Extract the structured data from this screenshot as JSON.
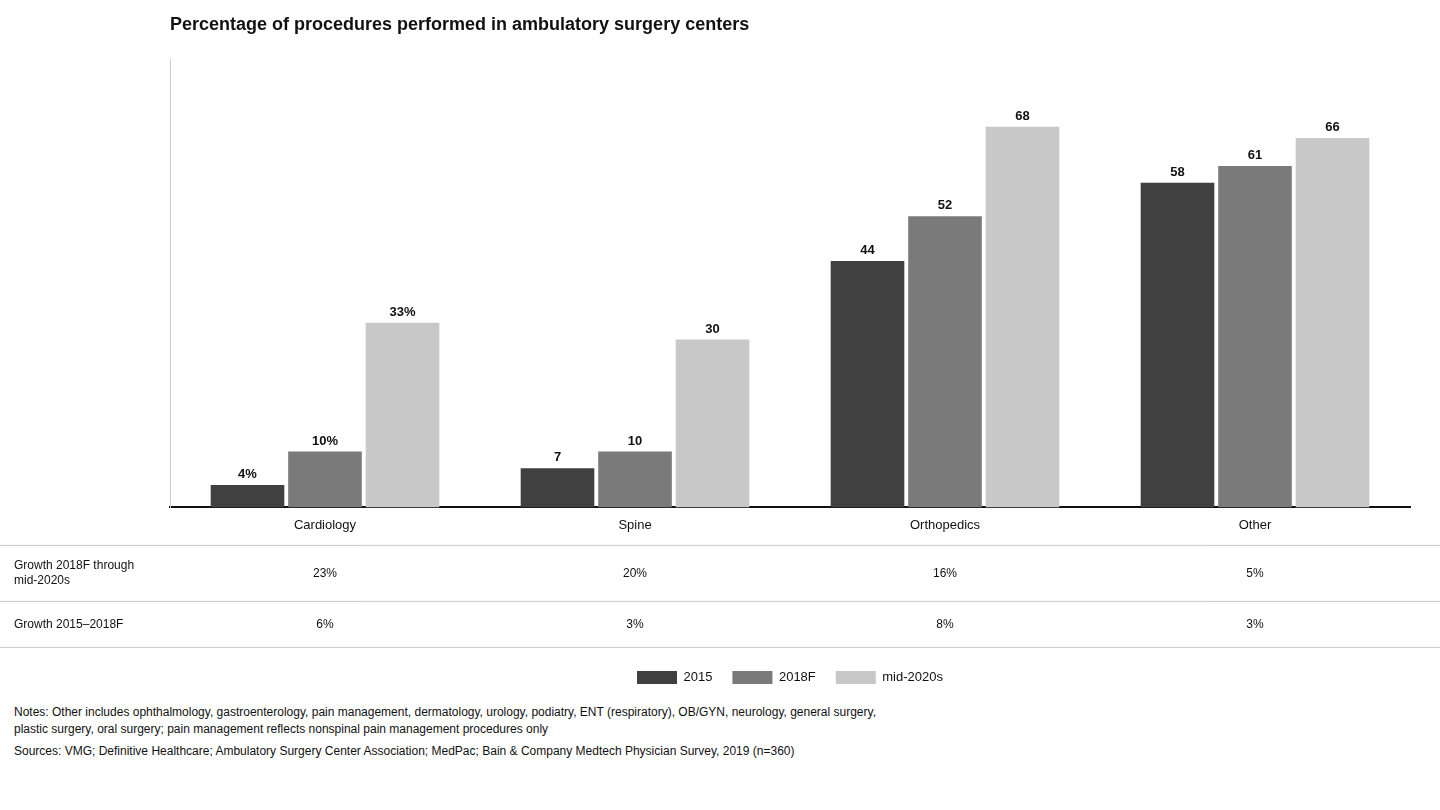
{
  "chart_data": {
    "type": "bar",
    "title": "Percentage of procedures performed in ambulatory surgery centers",
    "categories": [
      "Cardiology",
      "Spine",
      "Orthopedics",
      "Other"
    ],
    "series": [
      {
        "name": "2015",
        "color": "#404040",
        "values": [
          4,
          7,
          44,
          58
        ],
        "value_labels": [
          "4%",
          "7",
          "44",
          "58"
        ]
      },
      {
        "name": "2018F",
        "color": "#7a7a7a",
        "values": [
          10,
          10,
          52,
          61
        ],
        "value_labels": [
          "10%",
          "10",
          "52",
          "61"
        ]
      },
      {
        "name": "mid-2020s",
        "color": "#c8c8c8",
        "values": [
          33,
          30,
          68,
          66
        ],
        "value_labels": [
          "33%",
          "30",
          "68",
          "66"
        ]
      }
    ],
    "ylim": [
      0,
      80
    ],
    "grid": false,
    "legend": "bottom",
    "data_labels": true,
    "tick_labels": "x",
    "growth_rows": [
      {
        "label": "Growth 2018F through\nmid-2020s",
        "values": [
          "23%",
          "20%",
          "16%",
          "5%"
        ]
      },
      {
        "label": "Growth 2015–2018F",
        "values": [
          "6%",
          "3%",
          "8%",
          "3%"
        ]
      }
    ],
    "notes": [
      "Notes: Other includes ophthalmology, gastroenterology, pain management, dermatology, urology, podiatry, ENT (respiratory), OB/GYN, neurology, general surgery,",
      "plastic surgery, oral surgery; pain management reflects nonspinal pain management procedures only"
    ],
    "sources": "Sources: VMG; Definitive Healthcare; Ambulatory Surgery Center Association; MedPac; Bain & Company Medtech Physician Survey, 2019 (n=360)"
  }
}
